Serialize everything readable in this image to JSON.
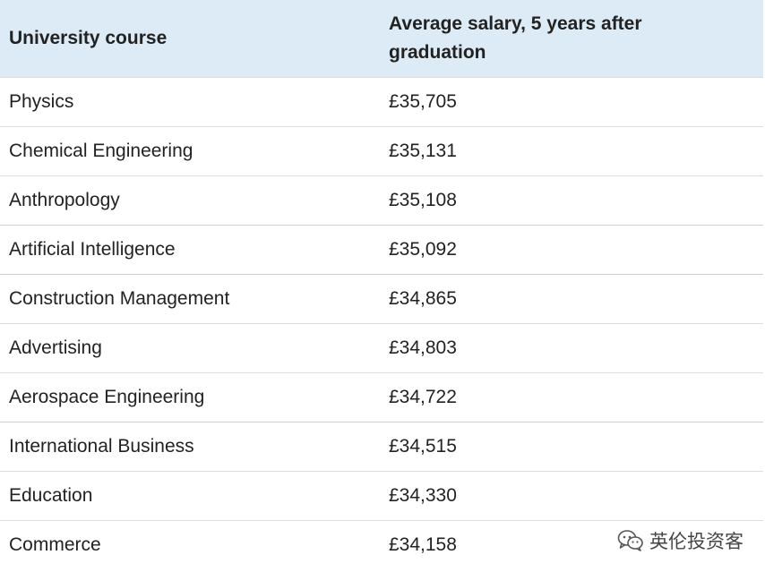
{
  "table": {
    "headers": [
      "University course",
      "Average salary, 5 years after graduation"
    ],
    "rows": [
      {
        "course": "Physics",
        "salary": "£35,705"
      },
      {
        "course": "Chemical Engineering",
        "salary": "£35,131"
      },
      {
        "course": "Anthropology",
        "salary": "£35,108"
      },
      {
        "course": "Artificial Intelligence",
        "salary": "£35,092"
      },
      {
        "course": "Construction Management",
        "salary": "£34,865"
      },
      {
        "course": "Advertising",
        "salary": "£34,803"
      },
      {
        "course": "Aerospace Engineering",
        "salary": "£34,722"
      },
      {
        "course": "International Business",
        "salary": "£34,515"
      },
      {
        "course": "Education",
        "salary": "£34,330"
      },
      {
        "course": "Commerce",
        "salary": "£34,158"
      }
    ]
  },
  "watermark": {
    "text": "英伦投资客",
    "icon": "wechat-icon"
  }
}
